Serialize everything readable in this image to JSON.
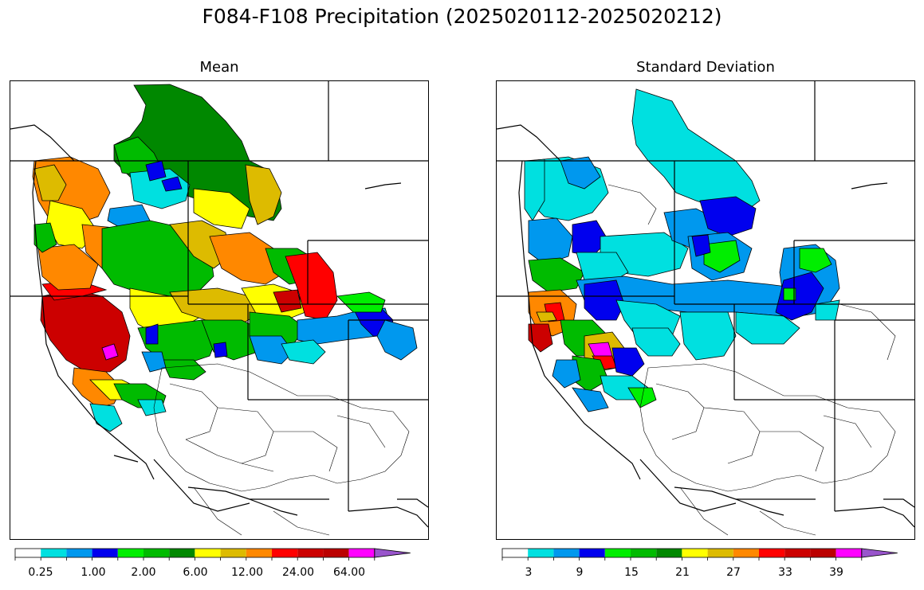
{
  "title": "F084-F108 Precipitation (2025020112-2025020212)",
  "panels": [
    {
      "title": "Mean",
      "colorbar": {
        "colors": [
          "#ffffff",
          "#00e0e0",
          "#0098ee",
          "#0000ee",
          "#00ee00",
          "#00bb00",
          "#008800",
          "#ffff00",
          "#ddbb00",
          "#ff8800",
          "#ff0000",
          "#cc0000",
          "#bb0000",
          "#ff00ff",
          "#9955cc"
        ],
        "tick_labels": [
          "0.25",
          "1.00",
          "2.00",
          "6.00",
          "12.00",
          "24.00",
          "64.00"
        ]
      }
    },
    {
      "title": "Standard Deviation",
      "colorbar": {
        "colors": [
          "#ffffff",
          "#00e0e0",
          "#0098ee",
          "#0000ee",
          "#00ee00",
          "#00bb00",
          "#008800",
          "#ffff00",
          "#ddbb00",
          "#ff8800",
          "#ff0000",
          "#cc0000",
          "#bb0000",
          "#ff00ff",
          "#9955cc"
        ],
        "tick_labels": [
          "3",
          "9",
          "15",
          "21",
          "27",
          "33",
          "39"
        ]
      }
    }
  ]
}
